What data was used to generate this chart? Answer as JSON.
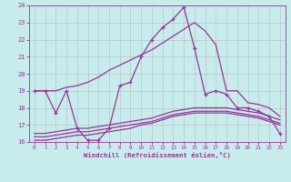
{
  "xlabel": "Windchill (Refroidissement éolien,°C)",
  "bg_color": "#c8ecec",
  "grid_color": "#b0b0b0",
  "line_color": "#993399",
  "xlim": [
    -0.5,
    23.5
  ],
  "ylim": [
    16,
    24
  ],
  "xticks": [
    0,
    1,
    2,
    3,
    4,
    5,
    6,
    7,
    8,
    9,
    10,
    11,
    12,
    13,
    14,
    15,
    16,
    17,
    18,
    19,
    20,
    21,
    22,
    23
  ],
  "yticks": [
    16,
    17,
    18,
    19,
    20,
    21,
    22,
    23,
    24
  ],
  "line1_x": [
    0,
    1,
    2,
    3,
    4,
    5,
    6,
    7,
    8,
    9,
    10,
    11,
    12,
    13,
    14,
    15,
    16,
    17,
    18,
    19,
    20,
    21,
    22,
    23
  ],
  "line1_y": [
    19.0,
    19.0,
    19.0,
    19.2,
    19.3,
    19.5,
    19.8,
    20.2,
    20.5,
    20.8,
    21.1,
    21.4,
    21.8,
    22.2,
    22.6,
    23.0,
    22.5,
    21.7,
    19.0,
    19.0,
    18.3,
    18.2,
    18.0,
    17.5
  ],
  "line2_x": [
    0,
    1,
    2,
    3,
    4,
    5,
    6,
    7,
    8,
    9,
    10,
    11,
    12,
    13,
    14,
    15,
    16,
    17,
    18,
    19,
    20,
    21,
    22,
    23
  ],
  "line2_y": [
    19.0,
    19.0,
    17.7,
    19.0,
    16.8,
    16.1,
    16.1,
    16.8,
    19.3,
    19.5,
    21.0,
    22.0,
    22.7,
    23.2,
    23.9,
    21.5,
    18.8,
    19.0,
    18.8,
    18.0,
    18.0,
    17.8,
    17.5,
    16.5
  ],
  "line3_x": [
    0,
    1,
    2,
    3,
    4,
    5,
    6,
    7,
    8,
    9,
    10,
    11,
    12,
    13,
    14,
    15,
    16,
    17,
    18,
    19,
    20,
    21,
    22,
    23
  ],
  "line3_y": [
    16.1,
    16.1,
    16.2,
    16.3,
    16.4,
    16.4,
    16.5,
    16.6,
    16.7,
    16.8,
    17.0,
    17.1,
    17.3,
    17.5,
    17.6,
    17.7,
    17.7,
    17.7,
    17.7,
    17.6,
    17.5,
    17.4,
    17.2,
    17.0
  ],
  "line4_x": [
    0,
    1,
    2,
    3,
    4,
    5,
    6,
    7,
    8,
    9,
    10,
    11,
    12,
    13,
    14,
    15,
    16,
    17,
    18,
    19,
    20,
    21,
    22,
    23
  ],
  "line4_y": [
    16.3,
    16.3,
    16.4,
    16.5,
    16.6,
    16.6,
    16.7,
    16.8,
    16.9,
    17.0,
    17.1,
    17.2,
    17.4,
    17.6,
    17.7,
    17.8,
    17.8,
    17.8,
    17.8,
    17.7,
    17.6,
    17.5,
    17.3,
    17.1
  ],
  "line5_x": [
    0,
    1,
    2,
    3,
    4,
    5,
    6,
    7,
    8,
    9,
    10,
    11,
    12,
    13,
    14,
    15,
    16,
    17,
    18,
    19,
    20,
    21,
    22,
    23
  ],
  "line5_y": [
    16.5,
    16.5,
    16.6,
    16.7,
    16.8,
    16.8,
    16.9,
    17.0,
    17.1,
    17.2,
    17.3,
    17.4,
    17.6,
    17.8,
    17.9,
    18.0,
    18.0,
    18.0,
    18.0,
    17.9,
    17.8,
    17.7,
    17.5,
    17.3
  ]
}
